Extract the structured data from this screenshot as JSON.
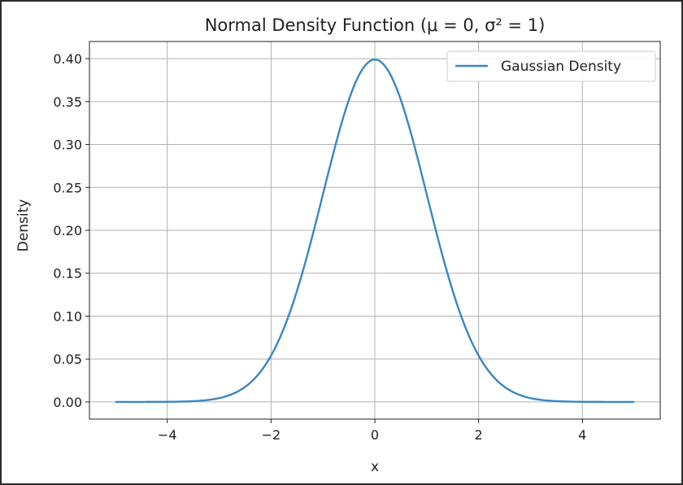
{
  "chart_data": {
    "type": "line",
    "title": "Normal Density Function (μ = 0, σ² = 1)",
    "xlabel": "x",
    "ylabel": "Density",
    "xlim": [
      -5.5,
      5.5
    ],
    "ylim": [
      -0.02,
      0.42
    ],
    "xticks": [
      -4,
      -2,
      0,
      2,
      4
    ],
    "xtick_labels": [
      "−4",
      "−2",
      "0",
      "2",
      "4"
    ],
    "yticks": [
      0.0,
      0.05,
      0.1,
      0.15,
      0.2,
      0.25,
      0.3,
      0.35,
      0.4
    ],
    "ytick_labels": [
      "0.00",
      "0.05",
      "0.10",
      "0.15",
      "0.20",
      "0.25",
      "0.30",
      "0.35",
      "0.40"
    ],
    "grid": true,
    "legend_position": "top-right",
    "series": [
      {
        "name": "Gaussian Density",
        "color": "#3a87c0",
        "x": [
          -5,
          -4.5,
          -4,
          -3.5,
          -3,
          -2.5,
          -2,
          -1.75,
          -1.5,
          -1.25,
          -1,
          -0.75,
          -0.5,
          -0.25,
          0,
          0.25,
          0.5,
          0.75,
          1,
          1.25,
          1.5,
          1.75,
          2,
          2.5,
          3,
          3.5,
          4,
          4.5,
          5
        ],
        "y": [
          0.0,
          0.0,
          0.0001,
          0.0009,
          0.0044,
          0.0175,
          0.054,
          0.0863,
          0.1295,
          0.1826,
          0.242,
          0.3011,
          0.3521,
          0.3867,
          0.3989,
          0.3867,
          0.3521,
          0.3011,
          0.242,
          0.1826,
          0.1295,
          0.0863,
          0.054,
          0.0175,
          0.0044,
          0.0009,
          0.0001,
          0.0,
          0.0
        ]
      }
    ]
  }
}
